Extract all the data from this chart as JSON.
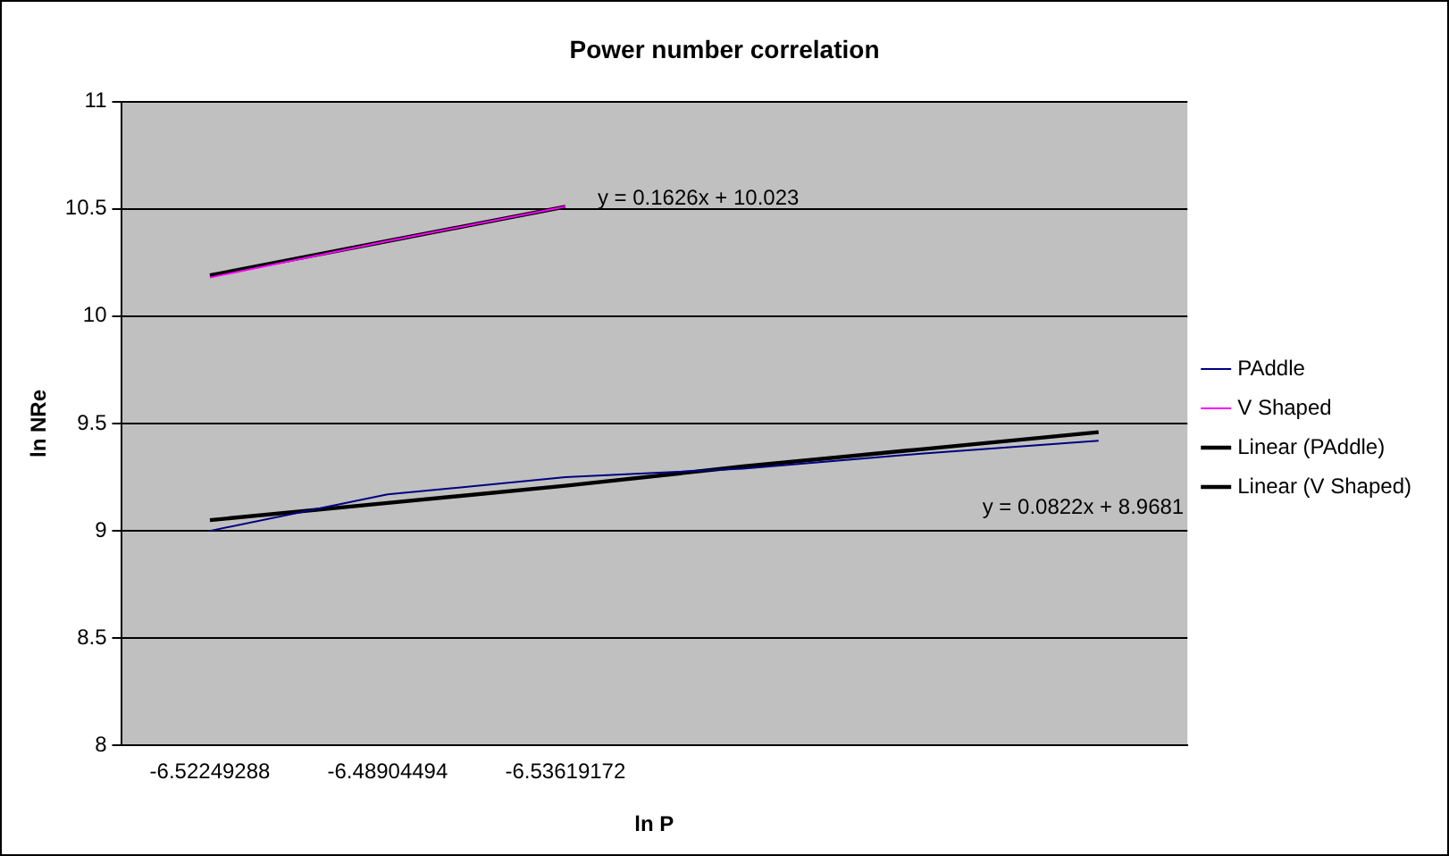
{
  "chart_data": {
    "type": "line",
    "title": "Power number correlation",
    "xlabel": "ln P",
    "ylabel": "ln NRe",
    "categories": [
      "-6.52249288",
      "-6.48904494",
      "-6.53619172",
      null,
      null,
      null
    ],
    "series": [
      {
        "name": "PAddle",
        "color": "#000080",
        "values": [
          9.0,
          9.17,
          9.25,
          9.29,
          9.36,
          9.42
        ]
      },
      {
        "name": "V Shaped",
        "color": "#ff00ff",
        "values": [
          10.18,
          10.35,
          10.51,
          null,
          null,
          null
        ]
      },
      {
        "name": "Linear (PAddle)",
        "color": "#000000",
        "values": [
          9.05,
          9.13,
          9.21,
          9.3,
          9.38,
          9.46
        ]
      },
      {
        "name": "Linear (V Shaped)",
        "color": "#000000",
        "values": [
          10.19,
          10.35,
          10.51,
          null,
          null,
          null
        ]
      }
    ],
    "annotations": [
      "y = 0.1626x + 10.023",
      "y = 0.0822x + 8.9681"
    ],
    "ylim": [
      8,
      11
    ],
    "yticks": [
      8,
      8.5,
      9,
      9.5,
      10,
      10.5,
      11
    ],
    "grid": "y",
    "legend": "right",
    "marker": "none",
    "line_style": "solid"
  }
}
